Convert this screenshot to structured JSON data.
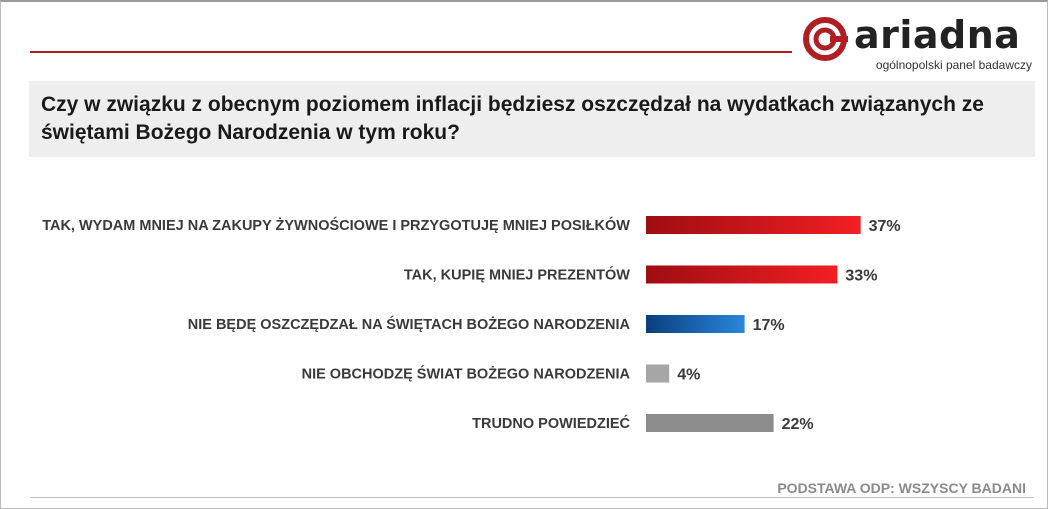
{
  "brand": {
    "name": "ariadna",
    "tagline": "ogólnopolski panel badawczy",
    "accent_color": "#b01e23",
    "icon": "ariadna-spiral-logo-icon"
  },
  "question": {
    "text": "Czy w związku z obecnym poziomem inflacji będziesz oszczędzał na wydatkach związanych ze świętami Bożego Narodzenia w tym roku?"
  },
  "footer": {
    "base_note": "PODSTAWA ODP: WSZYSCY BADANI"
  },
  "chart_data": {
    "type": "bar",
    "orientation": "horizontal",
    "title": "",
    "xlabel": "",
    "ylabel": "",
    "xlim": [
      0,
      100
    ],
    "grid": false,
    "categories": [
      "TAK, WYDAM MNIEJ NA ZAKUPY ŻYWNOŚCIOWE I PRZYGOTUJĘ MNIEJ POSIŁKÓW",
      "TAK, KUPIĘ MNIEJ PREZENTÓW",
      "NIE BĘDĘ OSZCZĘDZAŁ NA ŚWIĘTACH BOŻEGO NARODZENIA",
      "NIE OBCHODZĘ ŚWIAT BOŻEGO NARODZENIA",
      "TRUDNO POWIEDZIEĆ"
    ],
    "values": [
      37,
      33,
      17,
      4,
      22
    ],
    "value_labels": [
      "37%",
      "33%",
      "17%",
      "4%",
      "22%"
    ],
    "colors": [
      [
        "#9e0d12",
        "#f21f22"
      ],
      [
        "#9e0d12",
        "#f21f22"
      ],
      [
        "#0b3f7e",
        "#2a86dc"
      ],
      [
        "#a6a6a6",
        "#a6a6a6"
      ],
      [
        "#8c8c8c",
        "#8c8c8c"
      ]
    ]
  }
}
